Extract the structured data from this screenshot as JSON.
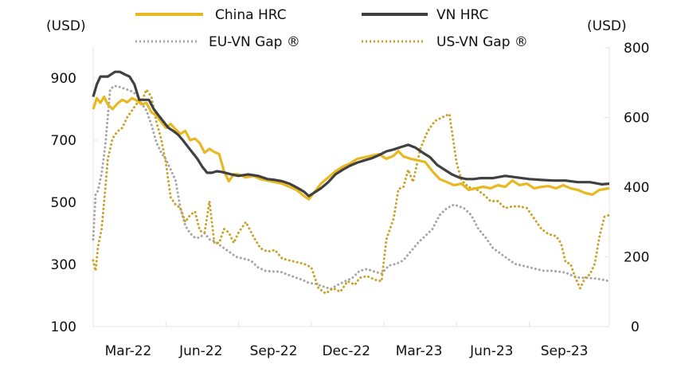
{
  "chart_data": {
    "type": "line",
    "title": "",
    "left_axis": {
      "label": "(USD)",
      "ylim": [
        100,
        1000
      ],
      "ticks": [
        100,
        300,
        500,
        700,
        900
      ]
    },
    "right_axis": {
      "label": "(USD)",
      "ylim": [
        0,
        800
      ],
      "ticks": [
        0,
        200,
        400,
        600,
        800
      ]
    },
    "x_axis": {
      "unit": "months since Mar-22",
      "xlim": [
        0,
        21.3
      ],
      "ticks": [
        {
          "x": 0,
          "label": "Mar-22"
        },
        {
          "x": 3,
          "label": "Jun-22"
        },
        {
          "x": 6,
          "label": "Sep-22"
        },
        {
          "x": 9,
          "label": "Dec-22"
        },
        {
          "x": 12,
          "label": "Mar-23"
        },
        {
          "x": 15,
          "label": "Jun-23"
        },
        {
          "x": 18,
          "label": "Sep-23"
        }
      ]
    },
    "grid": false,
    "legend": {
      "placement": "top",
      "entries": [
        {
          "name": "China HRC",
          "style": "solid",
          "color": "#E8B820"
        },
        {
          "name": "VN HRC",
          "style": "solid",
          "color": "#404040"
        },
        {
          "name": "EU-VN Gap ®",
          "style": "dotted",
          "color": "#A6A6A6"
        },
        {
          "name": "US-VN Gap ®",
          "style": "dotted",
          "color": "#C9A227"
        }
      ]
    },
    "series": [
      {
        "name": "China HRC",
        "axis": "left",
        "color": "#E8B820",
        "style": "solid",
        "x": [
          0,
          0.15,
          0.3,
          0.45,
          0.6,
          0.8,
          1.0,
          1.2,
          1.4,
          1.6,
          1.8,
          2.0,
          2.2,
          2.4,
          2.6,
          2.8,
          3.0,
          3.2,
          3.4,
          3.6,
          3.8,
          4.0,
          4.2,
          4.4,
          4.6,
          4.8,
          5.0,
          5.2,
          5.4,
          5.6,
          5.8,
          6.0,
          6.3,
          6.6,
          6.9,
          7.2,
          7.5,
          7.8,
          8.1,
          8.4,
          8.7,
          8.9,
          9.1,
          9.4,
          9.7,
          10.0,
          10.3,
          10.6,
          10.9,
          11.2,
          11.5,
          11.8,
          12.1,
          12.4,
          12.6,
          12.8,
          13.1,
          13.4,
          13.7,
          14.0,
          14.3,
          14.6,
          14.9,
          15.2,
          15.5,
          15.8,
          16.1,
          16.4,
          16.7,
          17.0,
          17.3,
          17.6,
          17.9,
          18.2,
          18.5,
          18.8,
          19.1,
          19.4,
          19.7,
          20.0,
          20.3,
          20.6,
          20.9,
          21.3
        ],
        "values": [
          800,
          835,
          820,
          840,
          815,
          800,
          818,
          830,
          822,
          835,
          828,
          815,
          820,
          790,
          780,
          760,
          740,
          752,
          735,
          720,
          730,
          700,
          705,
          690,
          660,
          672,
          662,
          655,
          600,
          568,
          590,
          590,
          580,
          585,
          575,
          570,
          565,
          560,
          550,
          540,
          520,
          510,
          530,
          560,
          580,
          600,
          615,
          625,
          640,
          645,
          650,
          655,
          640,
          650,
          665,
          648,
          640,
          635,
          630,
          600,
          575,
          565,
          555,
          560,
          540,
          545,
          550,
          545,
          555,
          550,
          570,
          555,
          560,
          545,
          550,
          552,
          545,
          555,
          545,
          540,
          530,
          525,
          540,
          545
        ]
      },
      {
        "name": "VN HRC",
        "axis": "left",
        "color": "#404040",
        "style": "solid",
        "x": [
          0,
          0.15,
          0.3,
          0.6,
          0.9,
          1.1,
          1.3,
          1.5,
          1.7,
          1.9,
          2.1,
          2.3,
          2.5,
          2.7,
          2.9,
          3.1,
          3.3,
          3.5,
          3.7,
          3.9,
          4.1,
          4.3,
          4.5,
          4.7,
          4.9,
          5.1,
          5.3,
          5.5,
          5.7,
          6.0,
          6.4,
          6.8,
          7.2,
          7.5,
          7.8,
          8.1,
          8.4,
          8.7,
          8.9,
          9.1,
          9.4,
          9.7,
          10.0,
          10.3,
          10.6,
          10.9,
          11.2,
          11.5,
          11.8,
          12.1,
          12.4,
          12.7,
          13.0,
          13.3,
          13.6,
          13.9,
          14.2,
          14.5,
          14.8,
          15.1,
          15.4,
          15.7,
          16.0,
          16.5,
          17.0,
          17.5,
          18.0,
          18.5,
          19.0,
          19.5,
          20.0,
          20.5,
          21.0,
          21.3
        ],
        "values": [
          840,
          880,
          905,
          905,
          920,
          920,
          912,
          905,
          880,
          830,
          830,
          830,
          800,
          780,
          760,
          740,
          730,
          718,
          700,
          680,
          660,
          640,
          615,
          595,
          595,
          600,
          598,
          594,
          590,
          585,
          590,
          585,
          575,
          572,
          568,
          560,
          548,
          534,
          520,
          530,
          545,
          565,
          590,
          605,
          618,
          628,
          635,
          642,
          652,
          664,
          670,
          678,
          685,
          676,
          660,
          645,
          620,
          605,
          590,
          580,
          575,
          575,
          578,
          578,
          585,
          580,
          575,
          572,
          570,
          570,
          565,
          565,
          558,
          560
        ]
      },
      {
        "name": "EU-VN Gap ®",
        "axis": "right",
        "color": "#A6A6A6",
        "style": "dotted",
        "x": [
          0,
          0.1,
          0.2,
          0.35,
          0.5,
          0.6,
          0.7,
          0.85,
          1.0,
          1.2,
          1.4,
          1.6,
          1.8,
          2.0,
          2.2,
          2.4,
          2.6,
          2.8,
          3.0,
          3.2,
          3.4,
          3.6,
          3.8,
          4.0,
          4.2,
          4.4,
          4.6,
          4.8,
          5.0,
          5.3,
          5.6,
          5.9,
          6.2,
          6.5,
          6.8,
          7.1,
          7.4,
          7.7,
          8.0,
          8.3,
          8.6,
          8.9,
          9.2,
          9.5,
          9.8,
          10.1,
          10.4,
          10.7,
          11.0,
          11.3,
          11.6,
          11.9,
          12.2,
          12.5,
          12.8,
          13.1,
          13.4,
          13.7,
          14.0,
          14.3,
          14.6,
          14.9,
          15.1,
          15.3,
          15.6,
          15.9,
          16.2,
          16.5,
          16.8,
          17.1,
          17.4,
          17.7,
          18.0,
          18.3,
          18.6,
          18.9,
          19.2,
          19.5,
          19.8,
          20.1,
          20.4,
          20.7,
          21.0,
          21.3
        ],
        "values": [
          250,
          380,
          390,
          440,
          520,
          600,
          680,
          690,
          690,
          685,
          680,
          675,
          665,
          640,
          620,
          580,
          530,
          500,
          480,
          450,
          420,
          340,
          290,
          268,
          255,
          255,
          268,
          250,
          245,
          230,
          215,
          200,
          195,
          190,
          170,
          160,
          158,
          158,
          150,
          142,
          135,
          125,
          122,
          115,
          108,
          120,
          130,
          140,
          160,
          165,
          158,
          152,
          175,
          180,
          190,
          215,
          240,
          260,
          280,
          320,
          340,
          350,
          345,
          340,
          320,
          280,
          255,
          225,
          210,
          195,
          180,
          175,
          170,
          165,
          160,
          160,
          158,
          155,
          145,
          140,
          140,
          138,
          135,
          130
        ]
      },
      {
        "name": "US-VN Gap ®",
        "axis": "right",
        "color": "#C9A227",
        "style": "dotted",
        "x": [
          0,
          0.1,
          0.2,
          0.35,
          0.5,
          0.6,
          0.8,
          1.0,
          1.2,
          1.4,
          1.6,
          1.8,
          2.0,
          2.2,
          2.4,
          2.6,
          2.8,
          3.0,
          3.2,
          3.4,
          3.6,
          3.8,
          4.0,
          4.2,
          4.4,
          4.6,
          4.8,
          5.0,
          5.2,
          5.4,
          5.6,
          5.8,
          6.0,
          6.3,
          6.6,
          6.9,
          7.2,
          7.5,
          7.8,
          8.1,
          8.4,
          8.7,
          9.0,
          9.3,
          9.6,
          9.9,
          10.2,
          10.5,
          10.8,
          11.0,
          11.3,
          11.6,
          11.9,
          12.1,
          12.4,
          12.6,
          12.8,
          13.0,
          13.2,
          13.5,
          13.8,
          14.1,
          14.4,
          14.7,
          15.0,
          15.2,
          15.5,
          15.8,
          16.1,
          16.4,
          16.7,
          17.0,
          17.3,
          17.6,
          17.9,
          18.2,
          18.5,
          18.8,
          19.1,
          19.3,
          19.5,
          19.7,
          19.9,
          20.1,
          20.3,
          20.5,
          20.7,
          20.9,
          21.1,
          21.3
        ],
        "values": [
          190,
          160,
          230,
          280,
          395,
          480,
          540,
          560,
          570,
          600,
          620,
          640,
          645,
          680,
          660,
          590,
          540,
          470,
          370,
          350,
          340,
          300,
          320,
          330,
          275,
          270,
          360,
          240,
          240,
          280,
          270,
          240,
          270,
          300,
          260,
          225,
          215,
          220,
          195,
          190,
          185,
          180,
          170,
          110,
          95,
          110,
          100,
          130,
          120,
          140,
          145,
          135,
          130,
          250,
          310,
          395,
          400,
          450,
          415,
          510,
          560,
          590,
          600,
          610,
          470,
          420,
          400,
          395,
          380,
          360,
          360,
          340,
          345,
          345,
          340,
          310,
          280,
          265,
          260,
          240,
          185,
          180,
          140,
          110,
          140,
          150,
          180,
          260,
          315,
          320
        ]
      }
    ]
  }
}
